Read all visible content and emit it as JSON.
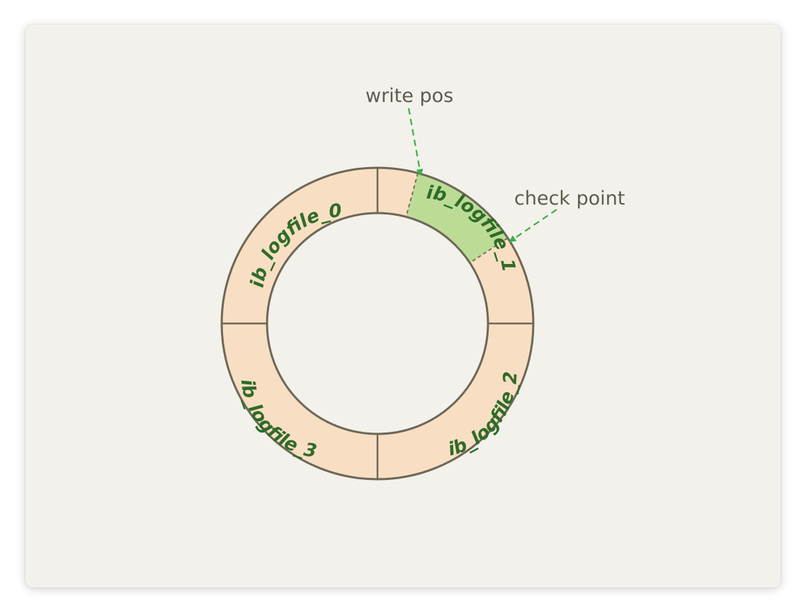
{
  "diagram": {
    "segments": [
      {
        "id": "seg0",
        "label": "ib_logfile_0"
      },
      {
        "id": "seg1",
        "label": "ib_logfile_1"
      },
      {
        "id": "seg2",
        "label": "ib_logfile_2"
      },
      {
        "id": "seg3",
        "label": "ib_logfile_3"
      }
    ],
    "pointers": {
      "write_pos": "write pos",
      "check_point": "check point"
    },
    "colors": {
      "background": "#f2f1eb",
      "ring_fill": "#f8dfc3",
      "active_fill": "#bcdc96",
      "outline": "#6e6757",
      "label_text": "#2f6b2a",
      "arrow": "#3cb043",
      "pointer_text": "#5e5b4f"
    }
  }
}
